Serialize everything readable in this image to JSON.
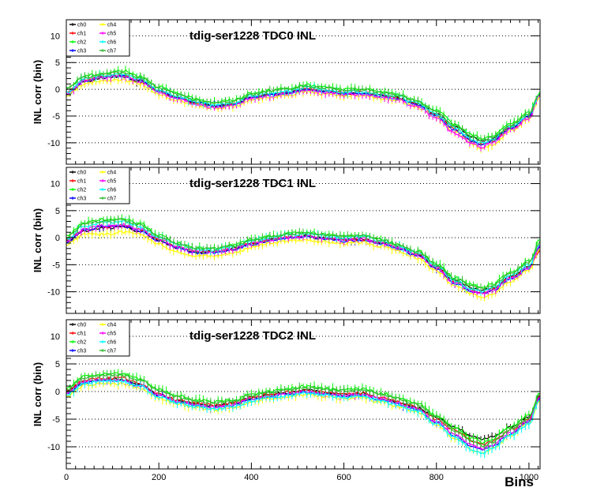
{
  "chart_data": [
    {
      "type": "line",
      "title": "tdig-ser1228 TDC0 INL",
      "xlabel": "",
      "ylabel": "INL corr (bin)",
      "xlim": [
        0,
        1024
      ],
      "ylim": [
        -14,
        13
      ],
      "yticks": [
        10,
        5,
        0,
        -5,
        -10
      ],
      "xticks": [],
      "grid": true,
      "legend_position": "top-left",
      "x": [
        0,
        40,
        80,
        120,
        160,
        200,
        240,
        280,
        320,
        360,
        400,
        440,
        480,
        520,
        560,
        600,
        640,
        680,
        720,
        745,
        760,
        800,
        840,
        880,
        900,
        920,
        960,
        1000,
        1024
      ],
      "series": [
        {
          "name": "ch0",
          "color": "#000000",
          "values": [
            -1,
            1.5,
            2.2,
            2.4,
            1.4,
            -0.3,
            -1.5,
            -2.5,
            -3.2,
            -2.8,
            -1.5,
            -1.0,
            -0.6,
            0.0,
            -0.4,
            -0.8,
            -0.6,
            -1.2,
            -1.6,
            -2.5,
            -2.8,
            -4.5,
            -7.0,
            -9.0,
            -9.6,
            -9.2,
            -7.0,
            -5.0,
            -1.0
          ]
        },
        {
          "name": "ch1",
          "color": "#ff0000",
          "values": [
            -0.6,
            1.8,
            2.4,
            2.6,
            1.7,
            -0.3,
            -1.6,
            -2.6,
            -3.2,
            -2.7,
            -1.5,
            -0.9,
            -0.5,
            0.1,
            -0.3,
            -0.7,
            -0.6,
            -1.1,
            -1.6,
            -2.4,
            -2.8,
            -4.8,
            -7.5,
            -9.7,
            -10.4,
            -9.6,
            -7.3,
            -5.0,
            -1.0
          ]
        },
        {
          "name": "ch2",
          "color": "#00ff00",
          "values": [
            0.2,
            2.5,
            3.0,
            3.5,
            2.5,
            0.5,
            -0.8,
            -1.8,
            -2.4,
            -2.0,
            -0.8,
            -0.2,
            0.2,
            0.8,
            0.4,
            0.0,
            0.1,
            -0.4,
            -1.0,
            -1.8,
            -2.2,
            -4.0,
            -6.5,
            -8.6,
            -9.2,
            -8.8,
            -6.4,
            -4.4,
            -0.6
          ]
        },
        {
          "name": "ch3",
          "color": "#0000ff",
          "values": [
            -0.9,
            1.6,
            2.3,
            2.5,
            1.6,
            -0.4,
            -1.6,
            -2.5,
            -3.1,
            -2.8,
            -1.5,
            -1.0,
            -0.6,
            0.0,
            -0.4,
            -0.8,
            -0.7,
            -1.2,
            -1.7,
            -2.6,
            -3.0,
            -5.0,
            -7.6,
            -9.7,
            -10.3,
            -9.6,
            -7.2,
            -5.1,
            -1.1
          ]
        },
        {
          "name": "ch4",
          "color": "#ffff00",
          "values": [
            -1.2,
            1.0,
            1.6,
            1.8,
            1.0,
            -0.9,
            -2.0,
            -3.0,
            -3.6,
            -3.2,
            -2.0,
            -1.4,
            -1.1,
            -0.5,
            -0.9,
            -1.3,
            -1.1,
            -1.7,
            -2.2,
            -3.0,
            -3.4,
            -5.3,
            -8.0,
            -10.4,
            -11.2,
            -10.4,
            -7.8,
            -5.6,
            -1.4
          ]
        },
        {
          "name": "ch5",
          "color": "#ff00ff",
          "values": [
            -0.8,
            1.7,
            2.2,
            2.4,
            1.5,
            -0.5,
            -1.8,
            -2.8,
            -3.4,
            -3.0,
            -1.7,
            -1.2,
            -0.8,
            -0.2,
            -0.6,
            -1.0,
            -0.9,
            -1.5,
            -2.0,
            -2.9,
            -3.3,
            -5.4,
            -8.2,
            -10.2,
            -10.8,
            -10.0,
            -7.6,
            -5.4,
            -1.2
          ]
        },
        {
          "name": "ch6",
          "color": "#00ffff",
          "values": [
            -0.5,
            2.0,
            2.6,
            2.8,
            1.9,
            -0.1,
            -1.3,
            -2.3,
            -2.9,
            -2.5,
            -1.2,
            -0.7,
            -0.3,
            0.3,
            -0.1,
            -0.5,
            -0.4,
            -0.9,
            -1.4,
            -2.3,
            -2.7,
            -4.6,
            -7.2,
            -9.4,
            -10.0,
            -9.4,
            -7.0,
            -4.9,
            -0.9
          ]
        },
        {
          "name": "ch7",
          "color": "#33bb33",
          "values": [
            0.0,
            2.3,
            2.8,
            3.2,
            2.2,
            0.3,
            -1.0,
            -2.0,
            -2.6,
            -2.2,
            -1.0,
            -0.4,
            0.0,
            0.6,
            0.2,
            -0.2,
            -0.1,
            -0.6,
            -1.2,
            -2.0,
            -2.4,
            -4.2,
            -6.8,
            -8.9,
            -9.5,
            -9.0,
            -6.7,
            -4.6,
            -0.7
          ]
        }
      ]
    },
    {
      "type": "line",
      "title": "tdig-ser1228 TDC1 INL",
      "xlabel": "",
      "ylabel": "INL corr (bin)",
      "xlim": [
        0,
        1024
      ],
      "ylim": [
        -14,
        13
      ],
      "yticks": [
        10,
        5,
        0,
        -5,
        -10
      ],
      "xticks": [],
      "grid": true,
      "legend_position": "top-left",
      "x": [
        0,
        40,
        80,
        120,
        160,
        200,
        240,
        280,
        320,
        360,
        400,
        440,
        480,
        520,
        560,
        600,
        640,
        680,
        720,
        745,
        760,
        800,
        840,
        880,
        900,
        920,
        960,
        1000,
        1024
      ],
      "series": [
        {
          "name": "ch0",
          "color": "#000000",
          "values": [
            -0.5,
            1.2,
            1.8,
            2.0,
            1.2,
            -0.5,
            -1.8,
            -2.6,
            -2.6,
            -2.0,
            -1.0,
            -0.4,
            0.1,
            0.3,
            -0.1,
            -0.4,
            -0.2,
            -0.9,
            -1.8,
            -2.8,
            -3.0,
            -5.4,
            -8.0,
            -9.4,
            -9.8,
            -9.3,
            -7.2,
            -5.3,
            -1.5
          ]
        },
        {
          "name": "ch1",
          "color": "#ff0000",
          "values": [
            -0.4,
            1.5,
            2.0,
            2.2,
            1.4,
            -0.4,
            -1.7,
            -2.6,
            -2.7,
            -2.1,
            -1.1,
            -0.5,
            0.0,
            0.2,
            -0.2,
            -0.5,
            -0.3,
            -1.0,
            -1.9,
            -2.9,
            -3.2,
            -5.6,
            -8.3,
            -9.8,
            -10.2,
            -9.6,
            -7.4,
            -5.5,
            -2.5
          ]
        },
        {
          "name": "ch2",
          "color": "#00ff00",
          "values": [
            0.3,
            2.8,
            3.4,
            3.6,
            2.6,
            0.5,
            -1.0,
            -1.9,
            -2.0,
            -1.4,
            -0.4,
            0.3,
            0.8,
            1.0,
            0.6,
            0.3,
            0.5,
            -0.3,
            -1.2,
            -2.2,
            -2.5,
            -4.8,
            -7.4,
            -8.8,
            -9.2,
            -8.6,
            -6.4,
            -4.4,
            -0.4
          ]
        },
        {
          "name": "ch3",
          "color": "#0000ff",
          "values": [
            -0.8,
            1.4,
            2.0,
            2.2,
            1.3,
            -0.6,
            -1.9,
            -2.8,
            -2.8,
            -2.2,
            -1.2,
            -0.6,
            -0.1,
            0.1,
            -0.3,
            -0.6,
            -0.4,
            -1.1,
            -2.0,
            -3.0,
            -3.3,
            -5.8,
            -8.5,
            -10.0,
            -10.4,
            -9.8,
            -7.6,
            -5.7,
            -1.8
          ]
        },
        {
          "name": "ch4",
          "color": "#ffff00",
          "values": [
            -1.3,
            0.8,
            0.6,
            1.0,
            0.6,
            -1.2,
            -2.6,
            -3.3,
            -3.4,
            -2.8,
            -1.8,
            -1.1,
            -0.6,
            -0.4,
            -0.8,
            -1.1,
            -0.9,
            -1.6,
            -2.5,
            -3.5,
            -3.8,
            -6.2,
            -8.9,
            -10.6,
            -11.0,
            -10.3,
            -8.0,
            -6.0,
            -2.0
          ]
        },
        {
          "name": "ch5",
          "color": "#ff00ff",
          "values": [
            -0.6,
            1.6,
            2.2,
            2.4,
            1.5,
            -0.3,
            -1.6,
            -2.5,
            -2.6,
            -2.0,
            -1.0,
            -0.4,
            0.1,
            0.3,
            -0.1,
            -0.4,
            -0.2,
            -0.9,
            -1.8,
            -2.8,
            -3.1,
            -5.6,
            -8.4,
            -10.0,
            -10.4,
            -9.7,
            -7.5,
            -5.6,
            -1.6
          ]
        },
        {
          "name": "ch6",
          "color": "#00ffff",
          "values": [
            -0.2,
            2.2,
            2.8,
            3.0,
            2.0,
            0.1,
            -1.3,
            -2.2,
            -2.3,
            -1.7,
            -0.7,
            0.0,
            0.5,
            0.7,
            0.3,
            0.0,
            0.2,
            -0.6,
            -1.5,
            -2.5,
            -2.8,
            -5.2,
            -7.9,
            -9.5,
            -9.9,
            -9.3,
            -7.0,
            -5.0,
            -1.2
          ]
        },
        {
          "name": "ch7",
          "color": "#33bb33",
          "values": [
            0.1,
            2.5,
            3.1,
            3.3,
            2.3,
            0.3,
            -1.1,
            -2.0,
            -2.1,
            -1.5,
            -0.5,
            0.2,
            0.7,
            0.9,
            0.5,
            0.2,
            0.4,
            -0.4,
            -1.3,
            -2.3,
            -2.6,
            -5.0,
            -7.6,
            -9.0,
            -9.4,
            -8.8,
            -6.6,
            -4.6,
            -0.8
          ]
        }
      ]
    },
    {
      "type": "line",
      "title": "tdig-ser1228 TDC2 INL",
      "xlabel": "Bins",
      "ylabel": "INL corr (bin)",
      "xlim": [
        0,
        1024
      ],
      "ylim": [
        -14,
        13
      ],
      "yticks": [
        10,
        5,
        0,
        -5,
        -10
      ],
      "xticks": [
        0,
        200,
        400,
        600,
        800,
        1000
      ],
      "grid": true,
      "legend_position": "top-left",
      "x": [
        0,
        40,
        80,
        120,
        160,
        200,
        240,
        280,
        320,
        360,
        400,
        440,
        480,
        520,
        560,
        600,
        640,
        680,
        720,
        745,
        760,
        800,
        840,
        880,
        900,
        920,
        960,
        1000,
        1024
      ],
      "series": [
        {
          "name": "ch0",
          "color": "#000000",
          "values": [
            0.0,
            1.8,
            2.2,
            2.2,
            1.2,
            -0.6,
            -1.6,
            -2.2,
            -2.6,
            -2.2,
            -1.2,
            -0.6,
            -0.2,
            0.2,
            -0.2,
            -0.6,
            -0.4,
            -1.2,
            -2.0,
            -2.6,
            -3.0,
            -4.8,
            -6.4,
            -8.2,
            -8.6,
            -8.2,
            -6.4,
            -4.6,
            -0.6
          ]
        },
        {
          "name": "ch1",
          "color": "#ff0000",
          "values": [
            0.2,
            2.0,
            2.4,
            2.4,
            1.4,
            -0.4,
            -1.5,
            -2.1,
            -2.5,
            -2.1,
            -1.1,
            -0.5,
            -0.1,
            0.3,
            -0.1,
            -0.5,
            -0.3,
            -1.1,
            -1.9,
            -2.6,
            -3.0,
            -5.0,
            -7.0,
            -9.0,
            -9.6,
            -9.0,
            -7.0,
            -5.0,
            -0.8
          ]
        },
        {
          "name": "ch2",
          "color": "#00ff00",
          "values": [
            0.6,
            2.8,
            3.2,
            3.2,
            2.2,
            0.4,
            -0.8,
            -1.5,
            -1.9,
            -1.5,
            -0.5,
            0.1,
            0.5,
            1.0,
            0.6,
            0.3,
            0.5,
            -0.3,
            -1.1,
            -1.9,
            -2.2,
            -4.3,
            -6.6,
            -8.6,
            -9.2,
            -8.6,
            -6.4,
            -4.4,
            -0.2
          ]
        },
        {
          "name": "ch3",
          "color": "#0000ff",
          "values": [
            -0.4,
            1.6,
            2.0,
            2.0,
            1.0,
            -0.8,
            -1.9,
            -2.5,
            -2.9,
            -2.5,
            -1.5,
            -0.9,
            -0.5,
            -0.1,
            -0.5,
            -0.9,
            -0.7,
            -1.5,
            -2.3,
            -3.0,
            -3.4,
            -5.6,
            -8.0,
            -10.0,
            -10.6,
            -9.9,
            -7.6,
            -5.5,
            -1.2
          ]
        },
        {
          "name": "ch4",
          "color": "#ffff00",
          "values": [
            -0.8,
            1.2,
            1.5,
            1.4,
            0.6,
            -1.2,
            -2.3,
            -2.9,
            -3.3,
            -2.9,
            -1.9,
            -1.3,
            -0.9,
            -0.5,
            -0.9,
            -1.3,
            -1.1,
            -1.9,
            -2.7,
            -3.4,
            -3.8,
            -6.0,
            -8.5,
            -10.6,
            -11.2,
            -10.4,
            -8.0,
            -5.8,
            -1.4
          ]
        },
        {
          "name": "ch5",
          "color": "#ff00ff",
          "values": [
            -0.2,
            1.8,
            2.1,
            2.1,
            1.1,
            -0.7,
            -1.8,
            -2.4,
            -2.8,
            -2.4,
            -1.4,
            -0.8,
            -0.4,
            0.0,
            -0.4,
            -0.8,
            -0.6,
            -1.4,
            -2.2,
            -2.9,
            -3.3,
            -5.4,
            -7.8,
            -9.8,
            -10.4,
            -9.7,
            -7.4,
            -5.3,
            -1.0
          ]
        },
        {
          "name": "ch6",
          "color": "#00ffff",
          "values": [
            -0.6,
            1.5,
            1.9,
            1.9,
            0.9,
            -0.9,
            -2.0,
            -2.7,
            -3.1,
            -2.7,
            -1.7,
            -1.1,
            -0.7,
            -0.3,
            -0.7,
            -1.1,
            -0.9,
            -1.7,
            -2.5,
            -3.2,
            -3.6,
            -5.9,
            -8.4,
            -10.6,
            -11.2,
            -10.4,
            -8.0,
            -5.8,
            -1.3
          ]
        },
        {
          "name": "ch7",
          "color": "#33bb33",
          "values": [
            0.4,
            2.6,
            3.0,
            3.0,
            2.0,
            0.2,
            -1.0,
            -1.7,
            -2.1,
            -1.7,
            -0.7,
            -0.1,
            0.3,
            0.8,
            0.4,
            0.1,
            0.3,
            -0.5,
            -1.3,
            -2.1,
            -2.4,
            -4.6,
            -7.0,
            -9.2,
            -9.8,
            -9.2,
            -6.9,
            -4.8,
            -0.4
          ]
        }
      ]
    }
  ]
}
